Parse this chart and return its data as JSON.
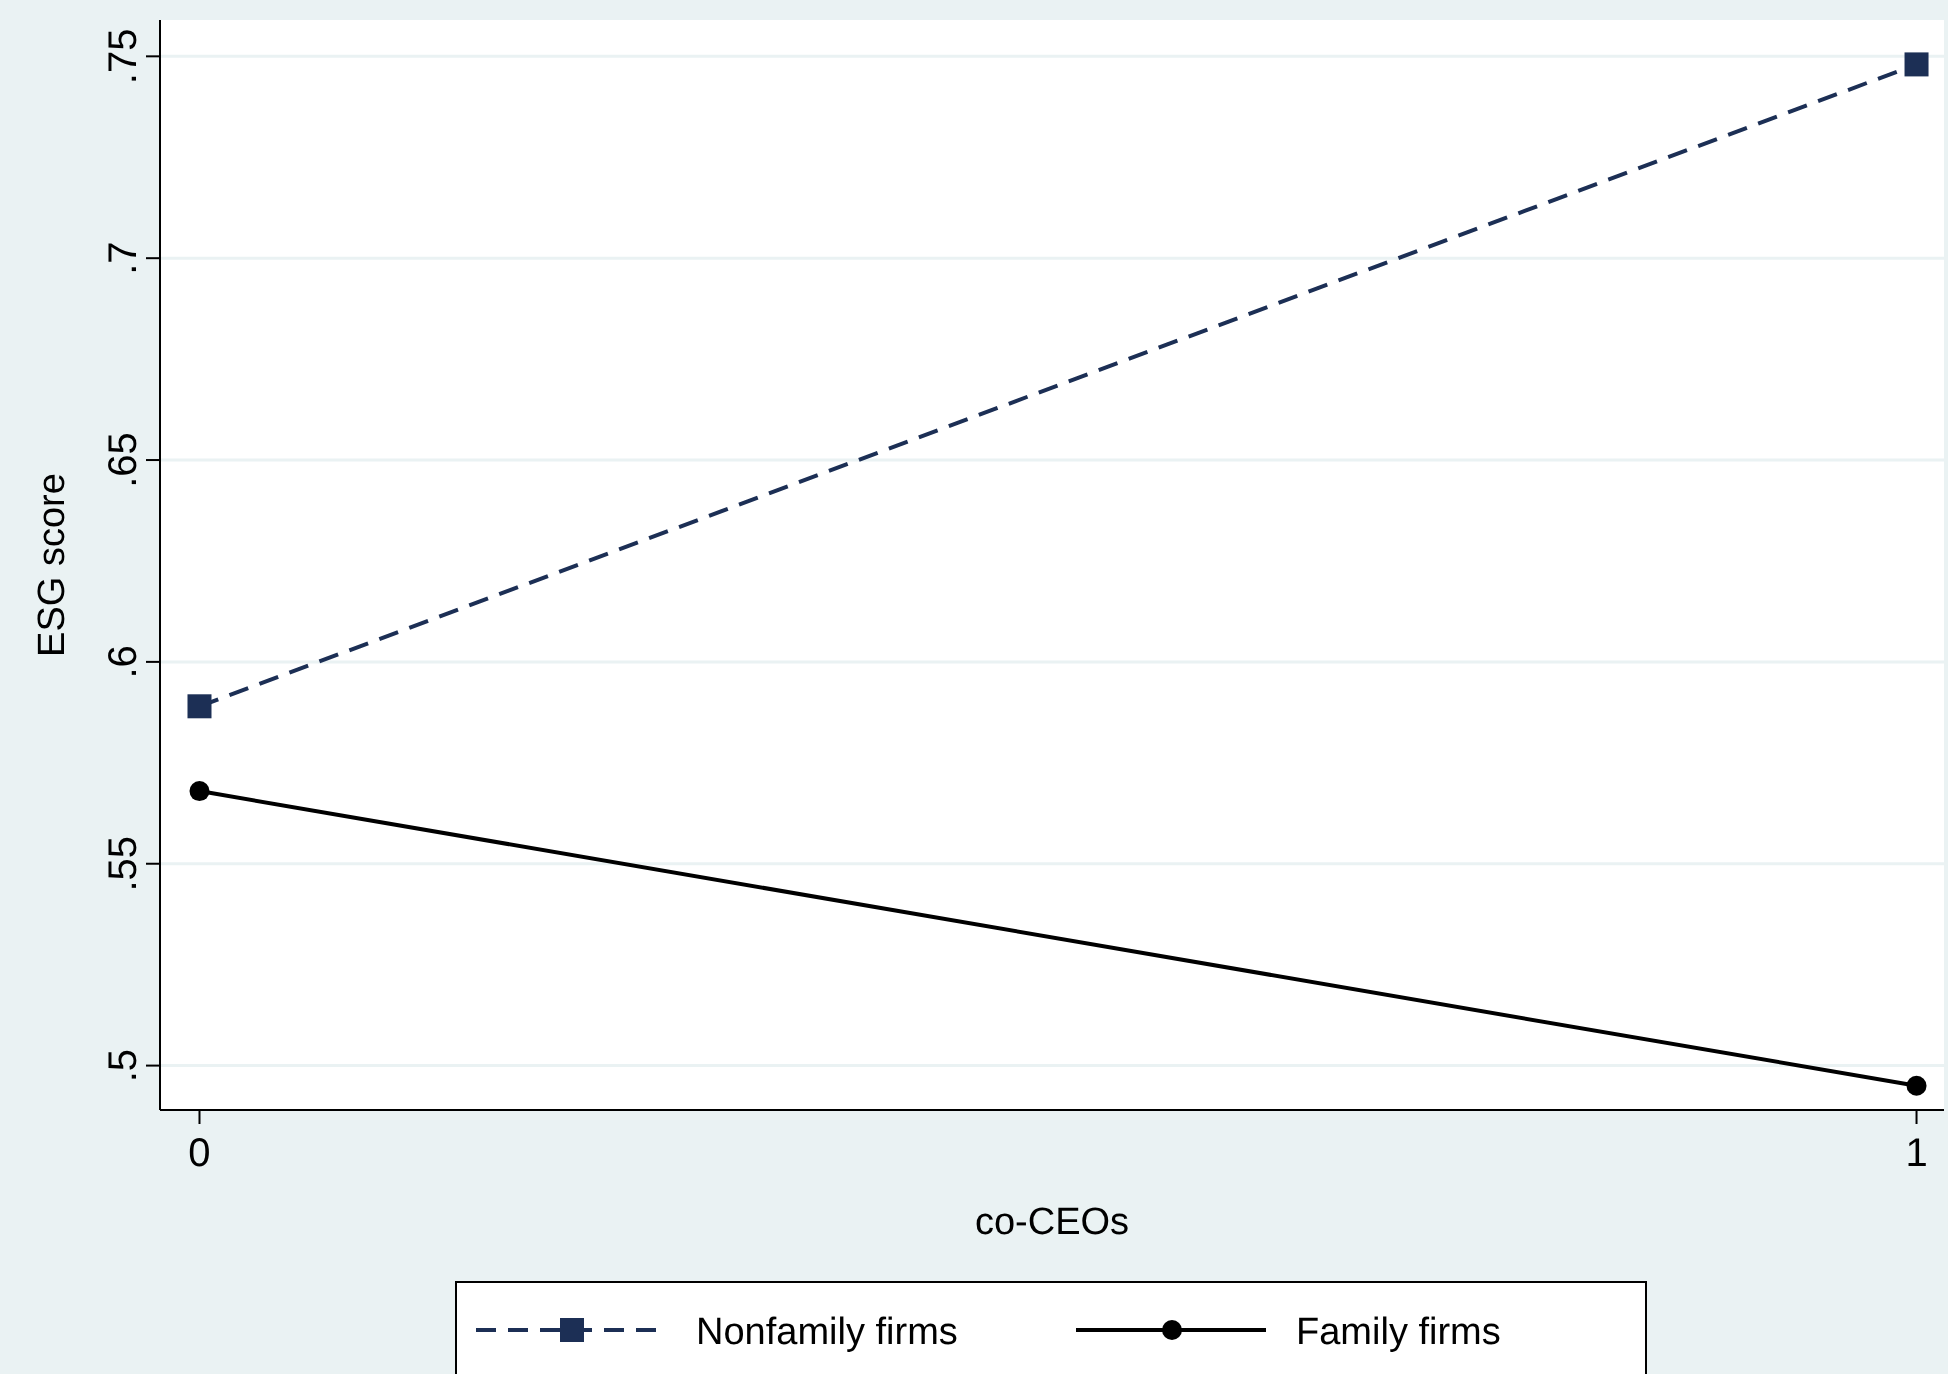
{
  "chart_data": {
    "type": "line",
    "xlabel": "co-CEOs",
    "ylabel": "ESG score",
    "x": [
      0,
      1
    ],
    "xlim": [
      -0.023,
      1.016
    ],
    "xticks": [
      0,
      1
    ],
    "ylim": [
      0.489,
      0.759
    ],
    "yticks": [
      {
        "value": 0.5,
        "label": ".5"
      },
      {
        "value": 0.55,
        "label": ".55"
      },
      {
        "value": 0.6,
        "label": ".6"
      },
      {
        "value": 0.65,
        "label": ".65"
      },
      {
        "value": 0.7,
        "label": ".7"
      },
      {
        "value": 0.75,
        "label": ".75"
      }
    ],
    "grid": "y",
    "legend": "bottom",
    "series": [
      {
        "name": "Nonfamily firms",
        "color": "#1c2f55",
        "values": [
          0.589,
          0.748
        ],
        "marker": "square",
        "line_style": "dashed"
      },
      {
        "name": "Family firms",
        "color": "#000000",
        "values": [
          0.568,
          0.495
        ],
        "marker": "circle",
        "line_style": "solid"
      }
    ]
  }
}
